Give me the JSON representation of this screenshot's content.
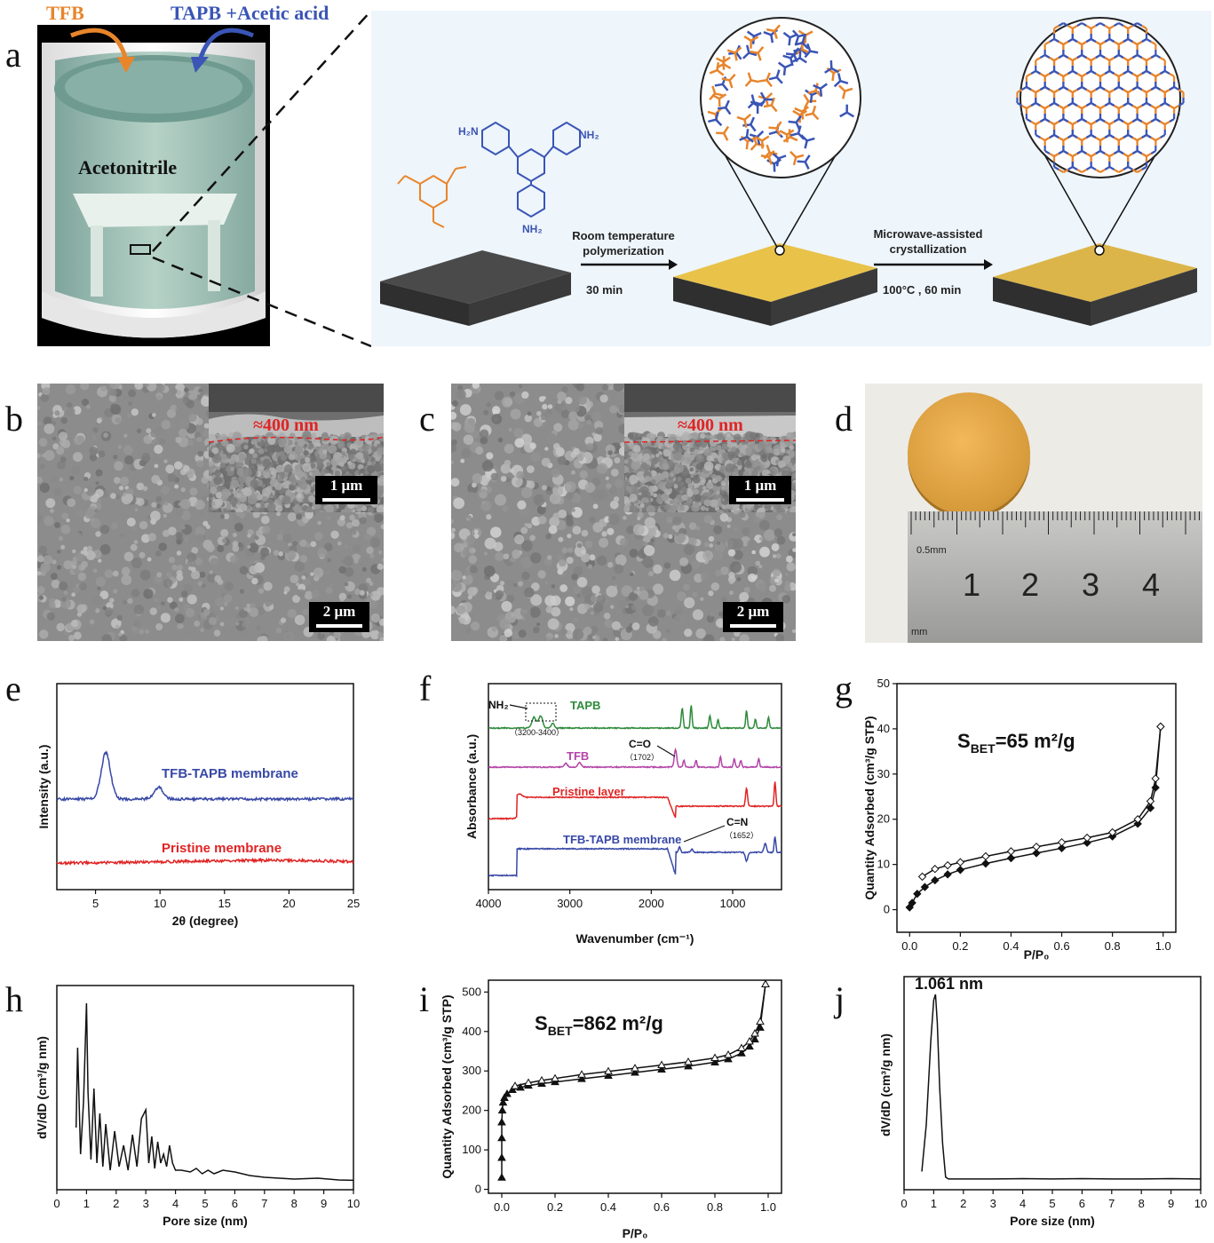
{
  "panel_labels": {
    "a": "a",
    "b": "b",
    "c": "c",
    "d": "d",
    "e": "e",
    "f": "f",
    "g": "g",
    "h": "h",
    "i": "i",
    "j": "j"
  },
  "panel_a": {
    "tfb": "TFB",
    "tapb": "TAPB +Acetic acid",
    "solvent": "Acetonitrile",
    "step1_line1": "Room temperature",
    "step1_line2": "polymerization",
    "step1_time": "30 min",
    "step2_line1": "Microwave-assisted",
    "step2_line2": "crystallization",
    "step2_time": "100°C , 60 min",
    "nh2_top_left": "H₂N",
    "nh2_top_right": "NH₂",
    "nh2_bottom": "NH₂",
    "colors": {
      "tfb": "#e8852b",
      "tapb": "#3a55b5",
      "film": "#e9c24a"
    }
  },
  "panel_b": {
    "thickness": "≈400 nm",
    "inset_scale": "1 μm",
    "scale": "2 μm"
  },
  "panel_c": {
    "thickness": "≈400 nm",
    "inset_scale": "1 μm",
    "scale": "2 μm"
  },
  "panel_d": {
    "ruler_note_top": "0.5mm",
    "ruler_note_bottom": "mm",
    "numbers": [
      "1",
      "2",
      "3",
      "4"
    ]
  },
  "chart_data": [
    {
      "id": "e",
      "type": "line",
      "xlabel": "2θ (degree)",
      "ylabel": "Intensity (a.u.)",
      "xlim": [
        2,
        25
      ],
      "xticks": [
        5,
        10,
        15,
        20,
        25
      ],
      "series": [
        {
          "name": "TFB-TAPB membrane",
          "color": "#3748a6",
          "peaks": [
            {
              "x": 5.8,
              "h": 1.0
            },
            {
              "x": 9.9,
              "h": 0.25
            }
          ]
        },
        {
          "name": "Pristine membrane",
          "color": "#e02424",
          "peaks": []
        }
      ]
    },
    {
      "id": "f",
      "type": "line",
      "xlabel": "Wavenumber (cm⁻¹)",
      "ylabel": "Absorbance (a.u.)",
      "xlim": [
        4000,
        400
      ],
      "xticks": [
        4000,
        3000,
        2000,
        1000
      ],
      "series": [
        {
          "name": "TAPB",
          "color": "#2e8b3a"
        },
        {
          "name": "TFB",
          "color": "#b344a8"
        },
        {
          "name": "Pristine layer",
          "color": "#e02424"
        },
        {
          "name": "TFB-TAPB membrane",
          "color": "#3748a6"
        }
      ],
      "annotations": {
        "nh2": "NH₂",
        "nh2_range": "（3200-3400）",
        "co": "C=O",
        "co_wn": "（1702）",
        "cn": "C=N",
        "cn_wn": "（1652）"
      }
    },
    {
      "id": "g",
      "type": "line",
      "xlabel": "P/P₀",
      "ylabel": "Quantity Adsorbed (cm³/g STP)",
      "xlim": [
        -0.05,
        1.05
      ],
      "ylim": [
        -5,
        50
      ],
      "xticks": [
        0.0,
        0.2,
        0.4,
        0.6,
        0.8,
        1.0
      ],
      "yticks": [
        0,
        10,
        20,
        30,
        40,
        50
      ],
      "annotation": "S",
      "annotation_sub": "BET",
      "annotation_rest": "=65 m²/g",
      "series": [
        {
          "name": "adsorption",
          "marker": "filled-diamond",
          "x": [
            0.0,
            0.01,
            0.03,
            0.06,
            0.1,
            0.15,
            0.2,
            0.3,
            0.4,
            0.5,
            0.6,
            0.7,
            0.8,
            0.9,
            0.95,
            0.97,
            0.99
          ],
          "y": [
            0.5,
            1.5,
            3.5,
            5,
            6.5,
            7.8,
            8.8,
            10.2,
            11.4,
            12.5,
            13.6,
            14.8,
            16.2,
            19,
            22.5,
            27,
            40.5
          ]
        },
        {
          "name": "desorption",
          "marker": "open-diamond",
          "x": [
            0.05,
            0.1,
            0.15,
            0.2,
            0.3,
            0.4,
            0.5,
            0.6,
            0.7,
            0.8,
            0.9,
            0.95,
            0.97,
            0.99
          ],
          "y": [
            7.3,
            9,
            9.8,
            10.5,
            11.8,
            12.9,
            13.9,
            14.9,
            15.9,
            17.1,
            20,
            24,
            29,
            40.5
          ]
        }
      ]
    },
    {
      "id": "h",
      "type": "line",
      "xlabel": "Pore size (nm)",
      "ylabel": "dV/dD (cm³/g nm)",
      "xlim": [
        0,
        10
      ],
      "xticks": [
        0,
        1,
        2,
        3,
        4,
        5,
        6,
        7,
        8,
        9,
        10
      ],
      "series": [
        {
          "name": "",
          "x": [
            0.65,
            0.7,
            0.8,
            0.9,
            1.0,
            1.05,
            1.15,
            1.25,
            1.35,
            1.45,
            1.55,
            1.65,
            1.8,
            1.95,
            2.1,
            2.25,
            2.4,
            2.55,
            2.7,
            2.85,
            3.0,
            3.1,
            3.2,
            3.3,
            3.4,
            3.5,
            3.6,
            3.7,
            3.8,
            3.9,
            4.0,
            4.2,
            4.5,
            4.7,
            4.9,
            5.1,
            5.3,
            5.6,
            6,
            6.5,
            7,
            7.5,
            8,
            8.8,
            9.5,
            10
          ],
          "y": [
            0.3,
            0.75,
            0.15,
            0.45,
            1.0,
            0.5,
            0.12,
            0.52,
            0.1,
            0.38,
            0.08,
            0.32,
            0.06,
            0.28,
            0.08,
            0.2,
            0.06,
            0.26,
            0.08,
            0.35,
            0.4,
            0.1,
            0.25,
            0.07,
            0.22,
            0.1,
            0.15,
            0.08,
            0.2,
            0.1,
            0.06,
            0.06,
            0.05,
            0.07,
            0.04,
            0.06,
            0.04,
            0.06,
            0.05,
            0.03,
            0.02,
            0.015,
            0.01,
            0.015,
            0.005,
            0.003
          ]
        }
      ]
    },
    {
      "id": "i",
      "type": "line",
      "xlabel": "P/P₀",
      "ylabel": "Quantity Adsorbed (cm³/g STP)",
      "xlim": [
        -0.05,
        1.05
      ],
      "ylim": [
        -10,
        530
      ],
      "xticks": [
        0.0,
        0.2,
        0.4,
        0.6,
        0.8,
        1.0
      ],
      "yticks": [
        0,
        100,
        200,
        300,
        400,
        500
      ],
      "annotation": "S",
      "annotation_sub": "BET",
      "annotation_rest": "=862 m²/g",
      "series": [
        {
          "name": "adsorption",
          "marker": "filled-triangle",
          "x": [
            0.0,
            0.0,
            0.0,
            0.0,
            0.002,
            0.005,
            0.01,
            0.02,
            0.04,
            0.07,
            0.1,
            0.15,
            0.2,
            0.3,
            0.4,
            0.5,
            0.6,
            0.7,
            0.8,
            0.85,
            0.9,
            0.93,
            0.95,
            0.97,
            0.99
          ],
          "y": [
            30,
            80,
            130,
            170,
            200,
            220,
            232,
            242,
            252,
            258,
            263,
            268,
            272,
            280,
            288,
            296,
            304,
            312,
            322,
            330,
            345,
            362,
            380,
            410,
            520
          ]
        },
        {
          "name": "desorption",
          "marker": "open-triangle",
          "x": [
            0.05,
            0.1,
            0.15,
            0.2,
            0.3,
            0.4,
            0.5,
            0.6,
            0.7,
            0.8,
            0.85,
            0.9,
            0.93,
            0.95,
            0.97,
            0.99
          ],
          "y": [
            262,
            270,
            276,
            281,
            291,
            299,
            307,
            315,
            323,
            333,
            341,
            358,
            375,
            395,
            425,
            520
          ]
        }
      ]
    },
    {
      "id": "j",
      "type": "line",
      "xlabel": "Pore size (nm)",
      "ylabel": "dV/dD (cm³/g nm)",
      "xlim": [
        0,
        10
      ],
      "xticks": [
        0,
        1,
        2,
        3,
        4,
        5,
        6,
        7,
        8,
        9,
        10
      ],
      "annotation": "1.061 nm",
      "series": [
        {
          "name": "",
          "x": [
            0.6,
            0.75,
            0.9,
            1.0,
            1.06,
            1.12,
            1.2,
            1.3,
            1.4,
            1.5,
            2,
            3,
            4,
            5,
            6,
            7,
            8,
            9,
            10
          ],
          "y": [
            0.05,
            0.3,
            0.75,
            0.97,
            1.0,
            0.85,
            0.5,
            0.2,
            0.02,
            0.01,
            0.01,
            0.01,
            0.012,
            0.01,
            0.012,
            0.01,
            0.01,
            0.012,
            0.01
          ]
        }
      ]
    }
  ]
}
